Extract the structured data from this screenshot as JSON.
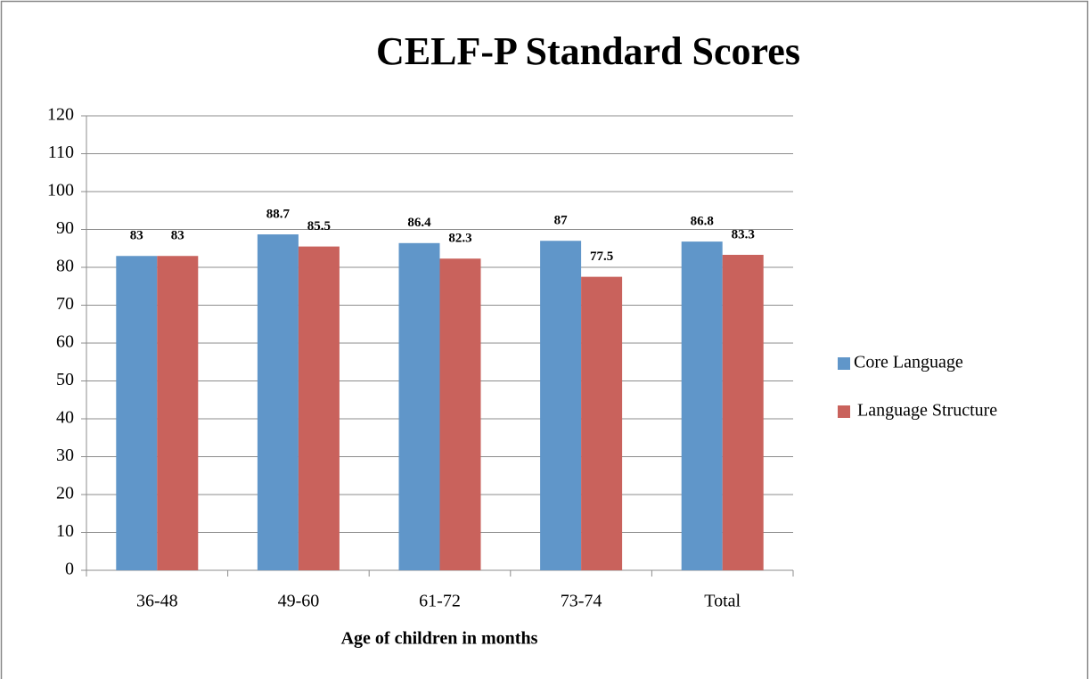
{
  "chart_data": {
    "type": "bar",
    "title": "CELF-P Standard Scores",
    "x_label": "Age of children in months",
    "categories": [
      "36-48",
      "49-60",
      "61-72",
      "73-74",
      "Total"
    ],
    "series": [
      {
        "name": "Core Language",
        "color": "#6096c9",
        "values": [
          83,
          88.7,
          86.4,
          87,
          86.8
        ]
      },
      {
        "name": "Language Structure",
        "color": "#c9625c",
        "values": [
          83,
          85.5,
          82.3,
          77.5,
          83.3
        ]
      }
    ],
    "ylim": [
      0,
      120
    ],
    "yticks": [
      0,
      10,
      20,
      30,
      40,
      50,
      60,
      70,
      80,
      90,
      100,
      110,
      120
    ],
    "grid": true,
    "legend": "right"
  }
}
